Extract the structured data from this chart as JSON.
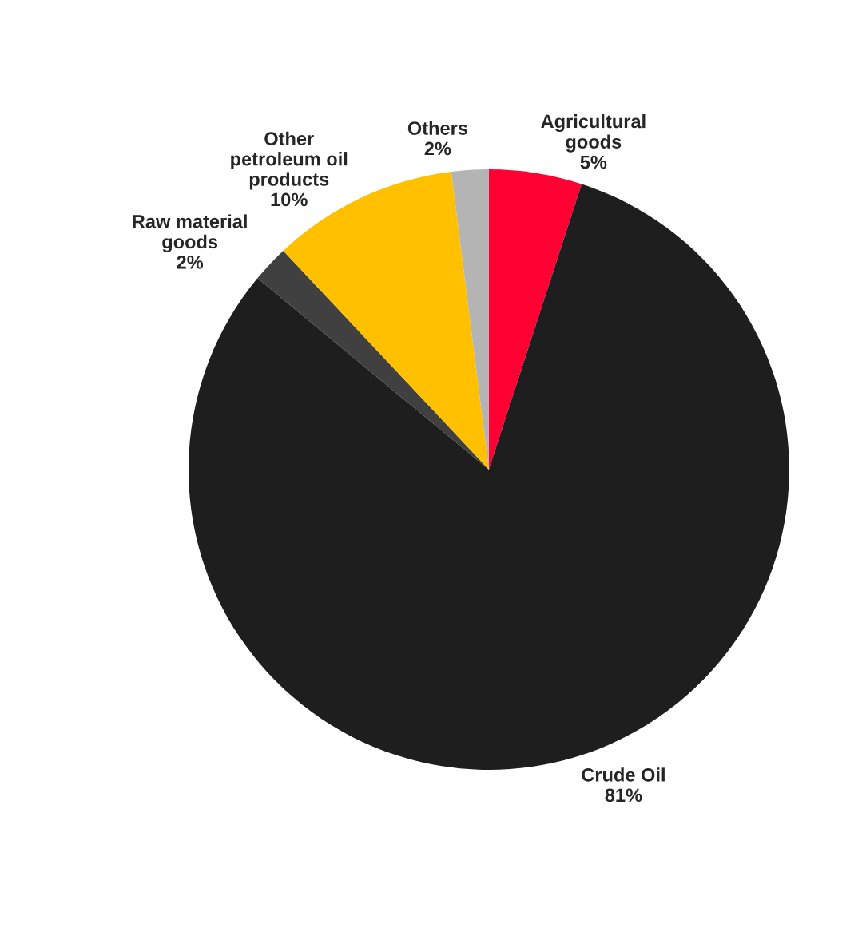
{
  "chart_data": {
    "type": "pie",
    "categories": [
      "Agricultural goods",
      "Crude Oil",
      "Raw material goods",
      "Other petroleum oil products",
      "Others"
    ],
    "values": [
      5,
      81,
      2,
      10,
      2
    ],
    "colors": [
      "#ff0033",
      "#1e1e1e",
      "#404040",
      "#ffc000",
      "#b4b4b4"
    ],
    "value_labels": [
      "5%",
      "81%",
      "2%",
      "10%",
      "2%"
    ]
  }
}
